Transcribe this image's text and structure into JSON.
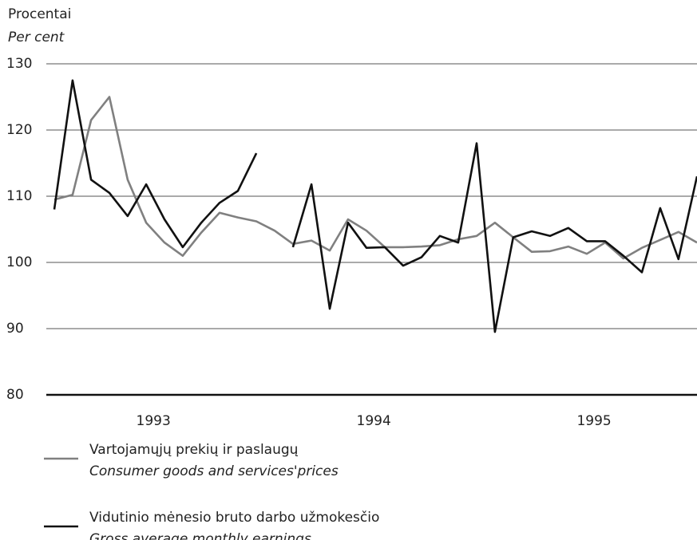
{
  "chart_data": {
    "type": "line",
    "ylabel": "Procentai",
    "ylabel_en": "Per cent",
    "x": [
      1993,
      1993.083,
      1993.167,
      1993.25,
      1993.333,
      1993.417,
      1993.5,
      1993.583,
      1993.667,
      1993.75,
      1993.833,
      1993.917,
      1994,
      1994.083,
      1994.167,
      1994.25,
      1994.333,
      1994.417,
      1994.5,
      1994.583,
      1994.667,
      1994.75,
      1994.833,
      1994.917,
      1995,
      1995.083,
      1995.167,
      1995.25,
      1995.333,
      1995.417,
      1995.5,
      1995.583,
      1995.667,
      1995.75,
      1995.833,
      1995.917
    ],
    "xlim": [
      1993,
      1995.917
    ],
    "xticks": [
      {
        "value": 1993.45,
        "label": "1993"
      },
      {
        "value": 1994.45,
        "label": "1994"
      },
      {
        "value": 1995.45,
        "label": "1995"
      }
    ],
    "ylim": [
      80,
      130
    ],
    "yticks": [
      80,
      90,
      100,
      110,
      120,
      130
    ],
    "grid": true,
    "series": [
      {
        "name": "Vartojamųjų prekių ir paslaugų",
        "name_en": "Consumer goods and services'prices",
        "color": "#808080",
        "values": [
          109.5,
          110.2,
          121.5,
          125,
          112.5,
          106,
          103,
          101,
          104.5,
          107.5,
          106.8,
          106.2,
          104.8,
          102.8,
          103.3,
          101.8,
          106.5,
          104.8,
          102.3,
          102.3,
          102.4,
          102.6,
          103.5,
          104,
          106,
          103.8,
          101.6,
          101.7,
          102.4,
          101.3,
          103,
          100.6,
          102.2,
          103.4,
          104.6,
          103
        ]
      },
      {
        "name": "Vidutinio mėnesio bruto darbo užmokesčio",
        "name_en": "Gross average monthly earnings",
        "color": "#111111",
        "values": [
          108,
          127.5,
          112.5,
          110.5,
          107,
          111.8,
          106.5,
          102.3,
          106,
          109,
          110.8,
          116.5,
          null,
          102.3,
          111.8,
          93,
          106,
          102.2,
          102.3,
          99.5,
          100.8,
          104,
          103,
          118,
          89.5,
          103.8,
          104.7,
          104,
          105.2,
          103.2,
          103.2,
          101,
          98.5,
          108.2,
          100.5,
          113
        ]
      }
    ]
  }
}
